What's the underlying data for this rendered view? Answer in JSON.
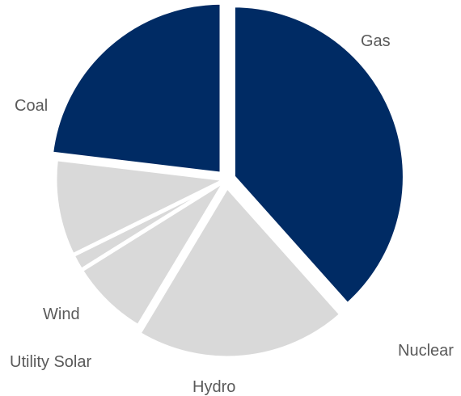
{
  "chart_data": {
    "type": "pie",
    "title": "",
    "slices": [
      {
        "label": "Gas",
        "value": 38.4,
        "color": "#002b64",
        "exploded": true
      },
      {
        "label": "Nuclear",
        "value": 20.2,
        "color": "#d9d9d9",
        "exploded": true
      },
      {
        "label": "Hydro",
        "value": 7.5,
        "color": "#d9d9d9",
        "exploded": false
      },
      {
        "label": "Utility Solar",
        "value": 1.6,
        "color": "#d9d9d9",
        "exploded": false
      },
      {
        "label": "Wind",
        "value": 9.2,
        "color": "#d9d9d9",
        "exploded": false
      },
      {
        "label": "Coal",
        "value": 23.1,
        "color": "#002b64",
        "exploded": true
      }
    ]
  }
}
